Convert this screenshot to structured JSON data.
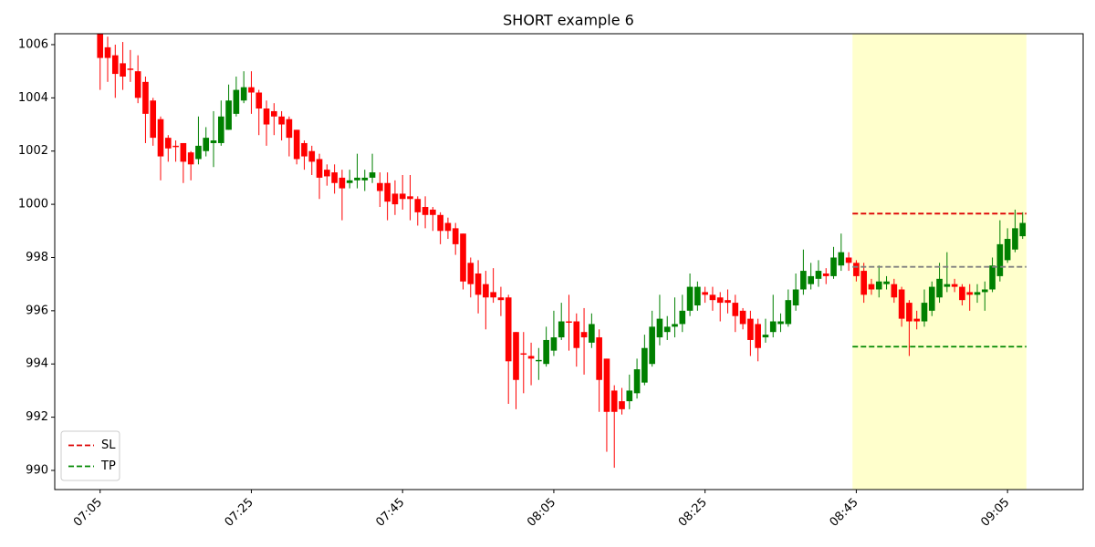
{
  "chart_data": {
    "type": "candlestick",
    "title": "SHORT example 6",
    "x": [
      "07:05",
      "07:06",
      "07:07",
      "07:08",
      "07:09",
      "07:10",
      "07:11",
      "07:12",
      "07:13",
      "07:14",
      "07:15",
      "07:16",
      "07:17",
      "07:18",
      "07:19",
      "07:20",
      "07:21",
      "07:22",
      "07:23",
      "07:24",
      "07:25",
      "07:26",
      "07:27",
      "07:28",
      "07:29",
      "07:30",
      "07:31",
      "07:32",
      "07:33",
      "07:34",
      "07:35",
      "07:36",
      "07:37",
      "07:38",
      "07:39",
      "07:40",
      "07:41",
      "07:42",
      "07:43",
      "07:44",
      "07:45",
      "07:46",
      "07:47",
      "07:48",
      "07:49",
      "07:50",
      "07:51",
      "07:52",
      "07:53",
      "07:54",
      "07:55",
      "07:56",
      "07:57",
      "07:58",
      "07:59",
      "08:00",
      "08:01",
      "08:02",
      "08:03",
      "08:04",
      "08:05",
      "08:06",
      "08:07",
      "08:08",
      "08:09",
      "08:10",
      "08:11",
      "08:12",
      "08:13",
      "08:14",
      "08:15",
      "08:16",
      "08:17",
      "08:18",
      "08:19",
      "08:20",
      "08:21",
      "08:22",
      "08:23",
      "08:24",
      "08:25",
      "08:26",
      "08:27",
      "08:28",
      "08:29",
      "08:30",
      "08:31",
      "08:32",
      "08:33",
      "08:34",
      "08:35",
      "08:36",
      "08:37",
      "08:38",
      "08:39",
      "08:40",
      "08:41",
      "08:42",
      "08:43",
      "08:44",
      "08:45",
      "08:46",
      "08:47",
      "08:48",
      "08:49",
      "08:50",
      "08:51",
      "08:52",
      "08:53",
      "08:54",
      "08:55",
      "08:56",
      "08:57",
      "08:58",
      "08:59",
      "09:00",
      "09:01",
      "09:02",
      "09:03",
      "09:04",
      "09:05",
      "09:06",
      "09:07"
    ],
    "open": [
      1006.4,
      1005.9,
      1005.6,
      1005.3,
      1005.1,
      1005,
      1004.6,
      1003.9,
      1003.2,
      1002.5,
      1002.2,
      1002.3,
      1001.95,
      1001.7,
      1002,
      1002.3,
      1002.3,
      1002.8,
      1003.4,
      1003.9,
      1004.4,
      1004.2,
      1003.6,
      1003.5,
      1003.3,
      1003.2,
      1002.8,
      1002.3,
      1002,
      1001.7,
      1001.3,
      1001.2,
      1001,
      1000.8,
      1000.9,
      1000.9,
      1001,
      1000.8,
      1000.8,
      1000.4,
      1000.4,
      1000.3,
      1000.2,
      999.9,
      999.8,
      999.6,
      999.3,
      999.1,
      998.9,
      997.8,
      997.4,
      997,
      996.7,
      996.5,
      996.5,
      995.2,
      994.4,
      994.3,
      994.1,
      994,
      994.5,
      995,
      995.6,
      995.6,
      995.2,
      994.8,
      995,
      994.2,
      993,
      992.6,
      992.6,
      992.9,
      993.3,
      994,
      995,
      995.2,
      995.4,
      995.5,
      996,
      996.2,
      996.7,
      996.6,
      996.5,
      996.4,
      996.3,
      996,
      995.7,
      995.5,
      995,
      995.2,
      995.5,
      995.5,
      996.2,
      996.8,
      997,
      997.2,
      997.4,
      997.3,
      997.7,
      998,
      997.8,
      997.5,
      997,
      996.8,
      997,
      997,
      996.8,
      996.3,
      995.7,
      995.6,
      996,
      996.5,
      996.9,
      997,
      996.9,
      996.7,
      996.6,
      996.7,
      996.8,
      997.3,
      997.9,
      998.3,
      998.8
    ],
    "high": [
      1006.4,
      1006.3,
      1006,
      1006.1,
      1005.8,
      1005.6,
      1004.8,
      1004,
      1003.3,
      1002.6,
      1002.4,
      1002.3,
      1002,
      1003.3,
      1002.9,
      1003.5,
      1003.9,
      1004.5,
      1004.8,
      1005,
      1005,
      1004.3,
      1003.9,
      1003.8,
      1003.5,
      1003.3,
      1002.8,
      1002.4,
      1002.2,
      1001.9,
      1001.5,
      1001.5,
      1001.3,
      1001.3,
      1001.9,
      1001.3,
      1001.9,
      1001.2,
      1001.2,
      1000.9,
      1001.1,
      1001.1,
      1000.3,
      1000.3,
      999.9,
      999.7,
      999.5,
      999.3,
      998.9,
      998,
      997.9,
      997.5,
      997.6,
      996.9,
      996.6,
      995.2,
      995.2,
      994.8,
      994.6,
      995.4,
      996,
      996.3,
      996.6,
      995.9,
      996.1,
      995.9,
      995.3,
      994.2,
      993.2,
      993.1,
      993.6,
      994.2,
      995.1,
      996,
      996.6,
      995.8,
      996.5,
      996.6,
      997.4,
      997.1,
      996.9,
      996.9,
      996.7,
      996.8,
      996.6,
      996.1,
      996,
      995.7,
      995.7,
      996.6,
      995.9,
      996.8,
      997.4,
      998.3,
      997.8,
      997.9,
      997.6,
      998.4,
      998.9,
      998.2,
      997.9,
      997.8,
      997.2,
      997.7,
      997.3,
      997.2,
      996.9,
      996.4,
      996,
      996.8,
      997.1,
      997.8,
      998.2,
      997.2,
      997,
      997,
      997,
      997.1,
      998,
      999.4,
      999.1,
      999.8,
      999.7
    ],
    "low": [
      1004.3,
      1004.6,
      1004,
      1004.3,
      1004.6,
      1003.8,
      1002.3,
      1002.2,
      1000.9,
      1001.6,
      1001.6,
      1000.8,
      1000.9,
      1001.5,
      1001.8,
      1001.4,
      1002.2,
      1002.8,
      1003.3,
      1003.8,
      1003.4,
      1002.6,
      1002.2,
      1002.6,
      1002.4,
      1001.8,
      1001.5,
      1001.3,
      1001.1,
      1000.2,
      1000.7,
      1000.4,
      999.4,
      1000.6,
      1000.6,
      1000.5,
      1000.8,
      999.9,
      999.4,
      999.6,
      999.8,
      999.4,
      999.2,
      999.1,
      999,
      998.5,
      998.7,
      998.1,
      996.8,
      996.5,
      995.9,
      995.3,
      996.3,
      995.8,
      992.5,
      992.3,
      992.9,
      993.2,
      993.4,
      993.9,
      994.3,
      994.9,
      994.5,
      993.9,
      993.6,
      994.6,
      992.2,
      990.7,
      990.1,
      992.1,
      992.3,
      992.7,
      993.2,
      993.9,
      994.7,
      994.9,
      995,
      995.2,
      995.8,
      996,
      996.3,
      996,
      995.6,
      995.9,
      995.2,
      995.3,
      994.3,
      994.1,
      994.8,
      995,
      995.2,
      995.4,
      996,
      996.6,
      996.8,
      996.9,
      997,
      997.2,
      997.5,
      997.5,
      997.1,
      996.3,
      996.6,
      996.5,
      996.8,
      996.3,
      995.4,
      994.3,
      995.3,
      995.4,
      995.8,
      996.3,
      996.7,
      996.7,
      996.2,
      996,
      996.3,
      996,
      996.7,
      997.1,
      997.8,
      998.2,
      998.7
    ],
    "close": [
      1005.5,
      1005.5,
      1004.9,
      1004.8,
      1005.05,
      1004,
      1003.4,
      1002.5,
      1001.8,
      1002.1,
      1002.15,
      1001.6,
      1001.5,
      1002.2,
      1002.5,
      1002.4,
      1003.3,
      1003.9,
      1004.3,
      1004.4,
      1004.2,
      1003.6,
      1003,
      1003.3,
      1003,
      1002.5,
      1001.7,
      1001.8,
      1001.6,
      1001,
      1001.05,
      1000.8,
      1000.6,
      1000.9,
      1001,
      1001,
      1001.2,
      1000.5,
      1000.1,
      1000,
      1000.2,
      1000.2,
      999.7,
      999.6,
      999.6,
      999,
      999,
      998.5,
      997.1,
      997,
      996.6,
      996.5,
      996.5,
      996.4,
      994.1,
      993.4,
      994.35,
      994.2,
      994.15,
      994.9,
      995,
      995.6,
      995.55,
      994.6,
      995,
      995.5,
      993.4,
      992.2,
      992.2,
      992.3,
      993,
      993.8,
      994.6,
      995.4,
      995.7,
      995.4,
      995.5,
      996,
      996.9,
      996.9,
      996.6,
      996.4,
      996.3,
      996.3,
      995.8,
      995.5,
      994.9,
      994.6,
      995.1,
      995.6,
      995.6,
      996.4,
      996.8,
      997.5,
      997.3,
      997.5,
      997.3,
      998,
      998.2,
      997.8,
      997.3,
      996.6,
      996.8,
      997.1,
      997.1,
      996.5,
      995.7,
      995.6,
      995.6,
      996.3,
      996.9,
      997.2,
      997,
      996.9,
      996.4,
      996.6,
      996.7,
      996.8,
      997.7,
      998.5,
      998.7,
      999.1,
      999.3
    ],
    "up_color": "green",
    "down_color": "red",
    "xlim": [
      "06:59",
      "09:15"
    ],
    "xticks": [
      "07:05",
      "07:25",
      "07:45",
      "08:05",
      "08:25",
      "08:45",
      "09:05"
    ],
    "ylim": [
      989.28,
      1006.41
    ],
    "yticks": [
      990,
      992,
      994,
      996,
      998,
      1000,
      1002,
      1004,
      1006
    ],
    "highlight": {
      "from": "08:45",
      "to": "09:07",
      "color": "#ffffcc"
    },
    "hlines": [
      {
        "name": "SL",
        "value": 999.65,
        "color": "#dd0000"
      },
      {
        "name": "TP",
        "value": 994.65,
        "color": "#008800"
      },
      {
        "value": 997.65,
        "color": "gray"
      }
    ],
    "legend": "lower left"
  }
}
